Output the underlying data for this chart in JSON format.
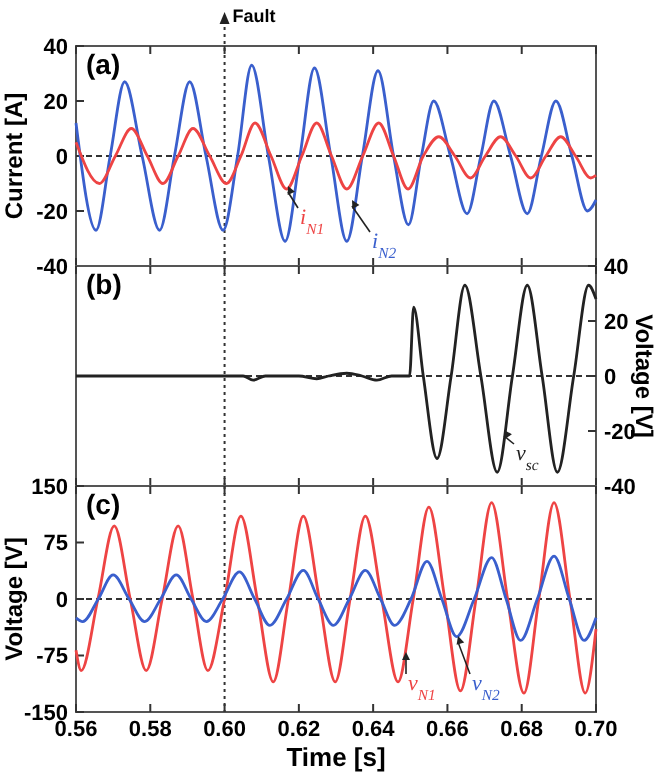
{
  "chart_data": [
    {
      "type": "line",
      "title": "(a)",
      "ylabel": "Current [A]",
      "xlim": [
        0.56,
        0.7
      ],
      "xticks": [
        {
          "value": 0.56,
          "label": null
        },
        {
          "value": 0.58,
          "label": null
        },
        {
          "value": 0.6,
          "label": null
        },
        {
          "value": 0.62,
          "label": null
        },
        {
          "value": 0.64,
          "label": null
        },
        {
          "value": 0.66,
          "label": null
        },
        {
          "value": 0.68,
          "label": null
        },
        {
          "value": 0.7,
          "label": null
        }
      ],
      "ylim": [
        -40,
        40
      ],
      "yticks": [
        -40,
        -20,
        0,
        20,
        40
      ],
      "tick_labels": "y",
      "ref_lines": [
        {
          "axis": "x",
          "value": 0.6,
          "label": "Fault",
          "line_style": "dotted",
          "color": "#333333"
        },
        {
          "axis": "y",
          "value": 0,
          "line_style": "dashed",
          "color": "#333333"
        }
      ],
      "series": [
        {
          "name": "i$_{N2}$",
          "color": "#3a5fcd",
          "x": [
            0.56,
            0.5654,
            0.5692,
            0.5731,
            0.5778,
            0.5825,
            0.5865,
            0.5906,
            0.595,
            0.5996,
            0.6035,
            0.6073,
            0.6118,
            0.6163,
            0.6203,
            0.6242,
            0.6286,
            0.6329,
            0.6371,
            0.6413,
            0.6455,
            0.6495,
            0.653,
            0.6563,
            0.6608,
            0.6653,
            0.669,
            0.6725,
            0.677,
            0.6815,
            0.6853,
            0.6892,
            0.6935,
            0.6977,
            0.7
          ],
          "values": [
            12,
            -27,
            0,
            27,
            0,
            -27,
            0,
            27,
            0,
            -27,
            0,
            33,
            0,
            -31,
            0,
            32,
            0,
            -31,
            0,
            31,
            0,
            -25,
            0,
            20,
            0,
            -21,
            0,
            20,
            0,
            -21,
            0,
            20,
            0,
            -20,
            -16
          ]
        },
        {
          "name": "i$_{N1}$",
          "color": "#ee4444",
          "x": [
            0.56,
            0.5663,
            0.5706,
            0.5749,
            0.5792,
            0.5834,
            0.5875,
            0.5915,
            0.596,
            0.6005,
            0.6044,
            0.6082,
            0.6125,
            0.6167,
            0.6208,
            0.6248,
            0.6288,
            0.6329,
            0.6372,
            0.6415,
            0.6455,
            0.6494,
            0.6535,
            0.6577,
            0.662,
            0.6662,
            0.6702,
            0.6743,
            0.6784,
            0.6824,
            0.6865,
            0.6905,
            0.6945,
            0.6986,
            0.7
          ],
          "values": [
            5,
            -10,
            0,
            10,
            0,
            -10,
            0,
            10,
            0,
            -10,
            0,
            12,
            0,
            -12,
            0,
            12,
            0,
            -12,
            0,
            12,
            0,
            -12,
            0,
            7,
            0,
            -8,
            0,
            7,
            0,
            -8,
            0,
            7,
            0,
            -8,
            -7
          ]
        }
      ]
    },
    {
      "type": "line",
      "title": "(b)",
      "y2label": "Voltage [V]",
      "xlim": [
        0.56,
        0.7
      ],
      "xticks": [
        {
          "value": 0.56,
          "label": null
        },
        {
          "value": 0.58,
          "label": null
        },
        {
          "value": 0.6,
          "label": null
        },
        {
          "value": 0.62,
          "label": null
        },
        {
          "value": 0.64,
          "label": null
        },
        {
          "value": 0.66,
          "label": null
        },
        {
          "value": 0.68,
          "label": null
        },
        {
          "value": 0.7,
          "label": null
        }
      ],
      "y2lim": [
        -40,
        40
      ],
      "y2ticks": [
        -40,
        -20,
        0,
        20,
        40
      ],
      "tick_labels": "y",
      "ref_lines": [
        {
          "axis": "x",
          "value": 0.6,
          "line_style": "dotted",
          "color": "#333333"
        },
        {
          "axis": "y2",
          "value": 0,
          "line_style": "dashed",
          "color": "#333333"
        }
      ],
      "series": [
        {
          "name": "v$_{sc}$",
          "color": "#222222",
          "axis": "y2",
          "x": [
            0.56,
            0.6,
            0.605,
            0.6077,
            0.611,
            0.62,
            0.6248,
            0.628,
            0.6329,
            0.637,
            0.641,
            0.645,
            0.6498,
            0.6509,
            0.6535,
            0.6572,
            0.661,
            0.6647,
            0.669,
            0.6734,
            0.6775,
            0.6815,
            0.6855,
            0.6896,
            0.694,
            0.698,
            0.7
          ],
          "values": [
            0,
            0,
            0,
            -1.5,
            0,
            0,
            -1,
            0,
            1,
            0,
            -1.5,
            0,
            0,
            25,
            0,
            -30,
            0,
            33,
            0,
            -35,
            0,
            33,
            0,
            -35,
            0,
            33,
            28
          ]
        }
      ]
    },
    {
      "type": "line",
      "title": "(c)",
      "xlabel": "Time [s]",
      "ylabel": "Voltage [V]",
      "xlim": [
        0.56,
        0.7
      ],
      "xticks": [
        0.56,
        0.58,
        {
          "value": 0.6,
          "label": "0.60"
        },
        0.62,
        0.64,
        0.66,
        0.68,
        {
          "value": 0.7,
          "label": "0.70"
        }
      ],
      "ylim": [
        -150,
        150
      ],
      "yticks": [
        -150,
        -75,
        0,
        75,
        150
      ],
      "ref_lines": [
        {
          "axis": "x",
          "value": 0.6,
          "line_style": "dotted",
          "color": "#333333"
        },
        {
          "axis": "y",
          "value": 0,
          "line_style": "dashed",
          "color": "#333333"
        }
      ],
      "series": [
        {
          "name": "v$_{N1}$",
          "color": "#ee4444",
          "x": [
            0.56,
            0.5614,
            0.5659,
            0.5703,
            0.5746,
            0.5789,
            0.5832,
            0.5875,
            0.5915,
            0.5955,
            0.6,
            0.6044,
            0.6088,
            0.6131,
            0.6172,
            0.6212,
            0.6255,
            0.6298,
            0.6338,
            0.6379,
            0.6423,
            0.6467,
            0.6508,
            0.655,
            0.6593,
            0.6635,
            0.6677,
            0.6719,
            0.6762,
            0.6806,
            0.6846,
            0.6887,
            0.693,
            0.6971,
            0.7
          ],
          "values": [
            -68,
            -95,
            0,
            97,
            0,
            -95,
            0,
            97,
            0,
            -95,
            0,
            110,
            0,
            -110,
            0,
            110,
            0,
            -110,
            0,
            110,
            0,
            -110,
            0,
            122,
            0,
            -122,
            0,
            128,
            0,
            -125,
            0,
            128,
            0,
            -125,
            -40
          ]
        },
        {
          "name": "v$_{N2}$",
          "color": "#3a5fcd",
          "x": [
            0.56,
            0.5618,
            0.566,
            0.57,
            0.5743,
            0.5785,
            0.5828,
            0.587,
            0.591,
            0.5951,
            0.5995,
            0.604,
            0.6081,
            0.6122,
            0.6167,
            0.6212,
            0.6252,
            0.6293,
            0.6336,
            0.6379,
            0.642,
            0.6458,
            0.6502,
            0.6545,
            0.6585,
            0.6625,
            0.6672,
            0.6719,
            0.6758,
            0.6797,
            0.6842,
            0.6887,
            0.6928,
            0.6968,
            0.7
          ],
          "values": [
            -25,
            -30,
            0,
            32,
            0,
            -30,
            0,
            32,
            0,
            -30,
            0,
            36,
            0,
            -35,
            0,
            38,
            0,
            -35,
            0,
            38,
            0,
            -35,
            0,
            50,
            0,
            -50,
            0,
            55,
            0,
            -55,
            0,
            57,
            0,
            -55,
            -25
          ]
        }
      ]
    }
  ]
}
